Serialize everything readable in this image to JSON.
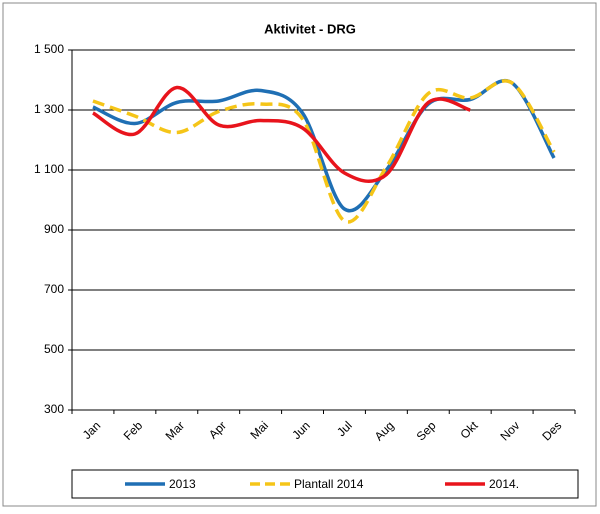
{
  "chart_data": {
    "type": "line",
    "title": "Aktivitet  - DRG",
    "categories": [
      "Jan",
      "Feb",
      "Mar",
      "Apr",
      "Mai",
      "Jun",
      "Jul",
      "Aug",
      "Sep",
      "Okt",
      "Nov",
      "Des"
    ],
    "series": [
      {
        "name": "2013",
        "color": "#1f6fb4",
        "dash": false,
        "values": [
          1310,
          1255,
          1325,
          1330,
          1365,
          1290,
          970,
          1100,
          1320,
          1335,
          1390,
          1140
        ]
      },
      {
        "name": "Plantall 2014",
        "color": "#f5c518",
        "dash": true,
        "values": [
          1330,
          1280,
          1225,
          1295,
          1320,
          1270,
          930,
          1110,
          1355,
          1340,
          1390,
          1160
        ]
      },
      {
        "name": "2014.",
        "color": "#e8141c",
        "dash": false,
        "values": [
          1290,
          1220,
          1375,
          1250,
          1265,
          1240,
          1090,
          1085,
          1325,
          1300,
          null,
          null
        ]
      }
    ],
    "ylim": [
      300,
      1500
    ],
    "yticks": [
      300,
      500,
      700,
      900,
      {
        "value": 1100,
        "label": "1 100"
      },
      {
        "value": 1300,
        "label": "1 300"
      },
      {
        "value": 1500,
        "label": "1 500"
      }
    ],
    "grid": true,
    "legend": "bottom"
  }
}
